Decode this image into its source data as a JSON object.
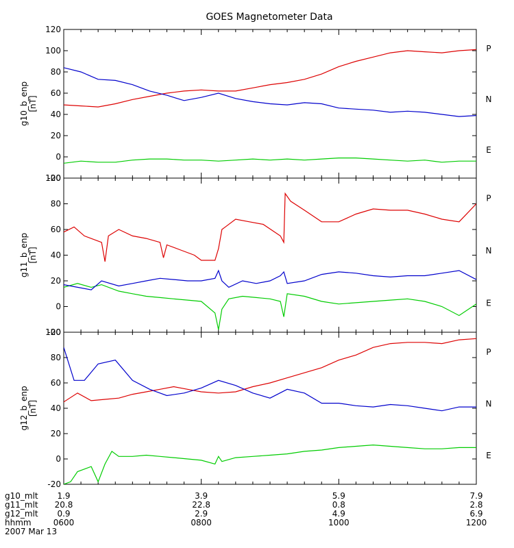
{
  "chart_data": {
    "type": "line",
    "title": "GOES Magnetometer Data",
    "date_label": "2007 Mar 13",
    "x_range": [
      "0600",
      "1200"
    ],
    "x_ticks": [
      "0600",
      "0800",
      "1000",
      "1200"
    ],
    "x_tick_hours": [
      6,
      8,
      10,
      12
    ],
    "series_letters": [
      "P",
      "N",
      "E"
    ],
    "colors": {
      "P": "#dd0000",
      "N": "#00cc00",
      "E": "#0000cc",
      "axis": "#000000"
    },
    "panels": [
      {
        "ylabel": "g10_b_enp",
        "yunit": "[nT]",
        "ylim": [
          -20,
          120
        ],
        "yticks": [
          -20,
          0,
          20,
          40,
          60,
          80,
          100,
          120
        ],
        "series": [
          {
            "name": "P",
            "color": "#dd0000",
            "x": [
              6.0,
              6.25,
              6.5,
              6.75,
              7.0,
              7.25,
              7.5,
              7.75,
              8.0,
              8.25,
              8.5,
              8.75,
              9.0,
              9.25,
              9.5,
              9.75,
              10.0,
              10.25,
              10.5,
              10.75,
              11.0,
              11.25,
              11.5,
              11.75,
              12.0
            ],
            "y": [
              49,
              48,
              47,
              50,
              54,
              57,
              60,
              62,
              63,
              62,
              62,
              65,
              68,
              70,
              73,
              78,
              85,
              90,
              94,
              98,
              100,
              99,
              98,
              100,
              101
            ]
          },
          {
            "name": "N",
            "color": "#00cc00",
            "x": [
              6.0,
              6.25,
              6.5,
              6.75,
              7.0,
              7.25,
              7.5,
              7.75,
              8.0,
              8.25,
              8.5,
              8.75,
              9.0,
              9.25,
              9.5,
              9.75,
              10.0,
              10.25,
              10.5,
              10.75,
              11.0,
              11.25,
              11.5,
              11.75,
              12.0
            ],
            "y": [
              -6,
              -4,
              -5,
              -5,
              -3,
              -2,
              -2,
              -3,
              -3,
              -4,
              -3,
              -2,
              -3,
              -2,
              -3,
              -2,
              -1,
              -1,
              -2,
              -3,
              -4,
              -3,
              -5,
              -4,
              -4
            ]
          },
          {
            "name": "E",
            "color": "#0000cc",
            "x": [
              6.0,
              6.25,
              6.5,
              6.75,
              7.0,
              7.25,
              7.5,
              7.75,
              8.0,
              8.25,
              8.5,
              8.75,
              9.0,
              9.25,
              9.5,
              9.75,
              10.0,
              10.25,
              10.5,
              10.75,
              11.0,
              11.25,
              11.5,
              11.75,
              12.0
            ],
            "y": [
              84,
              80,
              73,
              72,
              68,
              62,
              58,
              53,
              56,
              60,
              55,
              52,
              50,
              49,
              51,
              50,
              46,
              45,
              44,
              42,
              43,
              42,
              40,
              38,
              39
            ]
          }
        ]
      },
      {
        "ylabel": "g11_b_enp",
        "yunit": "[nT]",
        "ylim": [
          -20,
          100
        ],
        "yticks": [
          -20,
          0,
          20,
          40,
          60,
          80,
          100
        ],
        "series": [
          {
            "name": "P",
            "color": "#dd0000",
            "x": [
              6.0,
              6.15,
              6.3,
              6.55,
              6.6,
              6.65,
              6.8,
              7.0,
              7.2,
              7.4,
              7.45,
              7.5,
              7.7,
              7.9,
              8.0,
              8.2,
              8.25,
              8.3,
              8.35,
              8.5,
              8.7,
              8.9,
              9.15,
              9.2,
              9.22,
              9.3,
              9.5,
              9.75,
              10.0,
              10.25,
              10.5,
              10.75,
              11.0,
              11.25,
              11.5,
              11.75,
              12.0
            ],
            "y": [
              58,
              62,
              55,
              50,
              35,
              55,
              60,
              55,
              53,
              50,
              38,
              48,
              44,
              40,
              36,
              36,
              45,
              60,
              62,
              68,
              66,
              64,
              55,
              50,
              88,
              82,
              75,
              66,
              66,
              72,
              76,
              75,
              75,
              72,
              68,
              66,
              80
            ]
          },
          {
            "name": "N",
            "color": "#00cc00",
            "x": [
              6.0,
              6.2,
              6.4,
              6.55,
              6.8,
              7.0,
              7.2,
              7.4,
              7.6,
              7.8,
              8.0,
              8.2,
              8.25,
              8.3,
              8.4,
              8.6,
              8.8,
              9.0,
              9.15,
              9.2,
              9.25,
              9.5,
              9.75,
              10.0,
              10.25,
              10.5,
              10.75,
              11.0,
              11.25,
              11.5,
              11.75,
              12.0
            ],
            "y": [
              15,
              18,
              15,
              17,
              12,
              10,
              8,
              7,
              6,
              5,
              4,
              -5,
              -18,
              -2,
              6,
              8,
              7,
              6,
              4,
              -8,
              10,
              8,
              4,
              2,
              3,
              4,
              5,
              6,
              4,
              0,
              -7,
              2
            ]
          },
          {
            "name": "E",
            "color": "#0000cc",
            "x": [
              6.0,
              6.2,
              6.4,
              6.55,
              6.8,
              7.0,
              7.2,
              7.4,
              7.6,
              7.8,
              8.0,
              8.2,
              8.25,
              8.3,
              8.4,
              8.6,
              8.8,
              9.0,
              9.15,
              9.2,
              9.25,
              9.5,
              9.75,
              10.0,
              10.25,
              10.5,
              10.75,
              11.0,
              11.25,
              11.5,
              11.75,
              12.0
            ],
            "y": [
              17,
              15,
              13,
              20,
              16,
              18,
              20,
              22,
              21,
              20,
              20,
              22,
              28,
              20,
              15,
              20,
              18,
              20,
              24,
              27,
              18,
              20,
              25,
              27,
              26,
              24,
              23,
              24,
              24,
              26,
              28,
              21
            ]
          }
        ]
      },
      {
        "ylabel": "g12_b_enp",
        "yunit": "[nT]",
        "ylim": [
          -20,
          100
        ],
        "yticks": [
          -20,
          0,
          20,
          40,
          60,
          80,
          100
        ],
        "series": [
          {
            "name": "P",
            "color": "#dd0000",
            "x": [
              6.0,
              6.2,
              6.4,
              6.6,
              6.8,
              7.0,
              7.2,
              7.4,
              7.6,
              7.8,
              8.0,
              8.25,
              8.5,
              8.75,
              9.0,
              9.25,
              9.5,
              9.75,
              10.0,
              10.25,
              10.5,
              10.75,
              11.0,
              11.25,
              11.5,
              11.75,
              12.0
            ],
            "y": [
              45,
              52,
              46,
              47,
              48,
              51,
              53,
              55,
              57,
              55,
              53,
              52,
              53,
              57,
              60,
              64,
              68,
              72,
              78,
              82,
              88,
              91,
              92,
              92,
              91,
              94,
              95
            ]
          },
          {
            "name": "N",
            "color": "#00cc00",
            "x": [
              6.0,
              6.1,
              6.2,
              6.4,
              6.5,
              6.6,
              6.7,
              6.8,
              7.0,
              7.2,
              7.4,
              7.6,
              7.8,
              8.0,
              8.2,
              8.25,
              8.3,
              8.5,
              8.75,
              9.0,
              9.25,
              9.5,
              9.75,
              10.0,
              10.25,
              10.5,
              10.75,
              11.0,
              11.25,
              11.5,
              11.75,
              12.0
            ],
            "y": [
              -20,
              -18,
              -10,
              -6,
              -18,
              -4,
              6,
              2,
              2,
              3,
              2,
              1,
              0,
              -1,
              -4,
              2,
              -2,
              1,
              2,
              3,
              4,
              6,
              7,
              9,
              10,
              11,
              10,
              9,
              8,
              8,
              9,
              9
            ]
          },
          {
            "name": "E",
            "color": "#0000cc",
            "x": [
              6.0,
              6.15,
              6.3,
              6.5,
              6.75,
              7.0,
              7.25,
              7.5,
              7.75,
              8.0,
              8.25,
              8.5,
              8.75,
              9.0,
              9.25,
              9.5,
              9.75,
              10.0,
              10.25,
              10.5,
              10.75,
              11.0,
              11.25,
              11.5,
              11.75,
              12.0
            ],
            "y": [
              88,
              62,
              62,
              75,
              78,
              62,
              55,
              50,
              52,
              56,
              62,
              58,
              52,
              48,
              55,
              52,
              44,
              44,
              42,
              41,
              43,
              42,
              40,
              38,
              41,
              41
            ]
          }
        ]
      }
    ],
    "mlt_rows": [
      {
        "label": "g10_mlt",
        "values": [
          "1.9",
          "3.9",
          "5.9",
          "7.9"
        ]
      },
      {
        "label": "g11_mlt",
        "values": [
          "20.8",
          "22.8",
          "0.8",
          "2.8"
        ]
      },
      {
        "label": "g12_mlt",
        "values": [
          "0.9",
          "2.9",
          "4.9",
          "6.9"
        ]
      },
      {
        "label": "hhmm",
        "values": [
          "0600",
          "0800",
          "1000",
          "1200"
        ]
      }
    ]
  }
}
